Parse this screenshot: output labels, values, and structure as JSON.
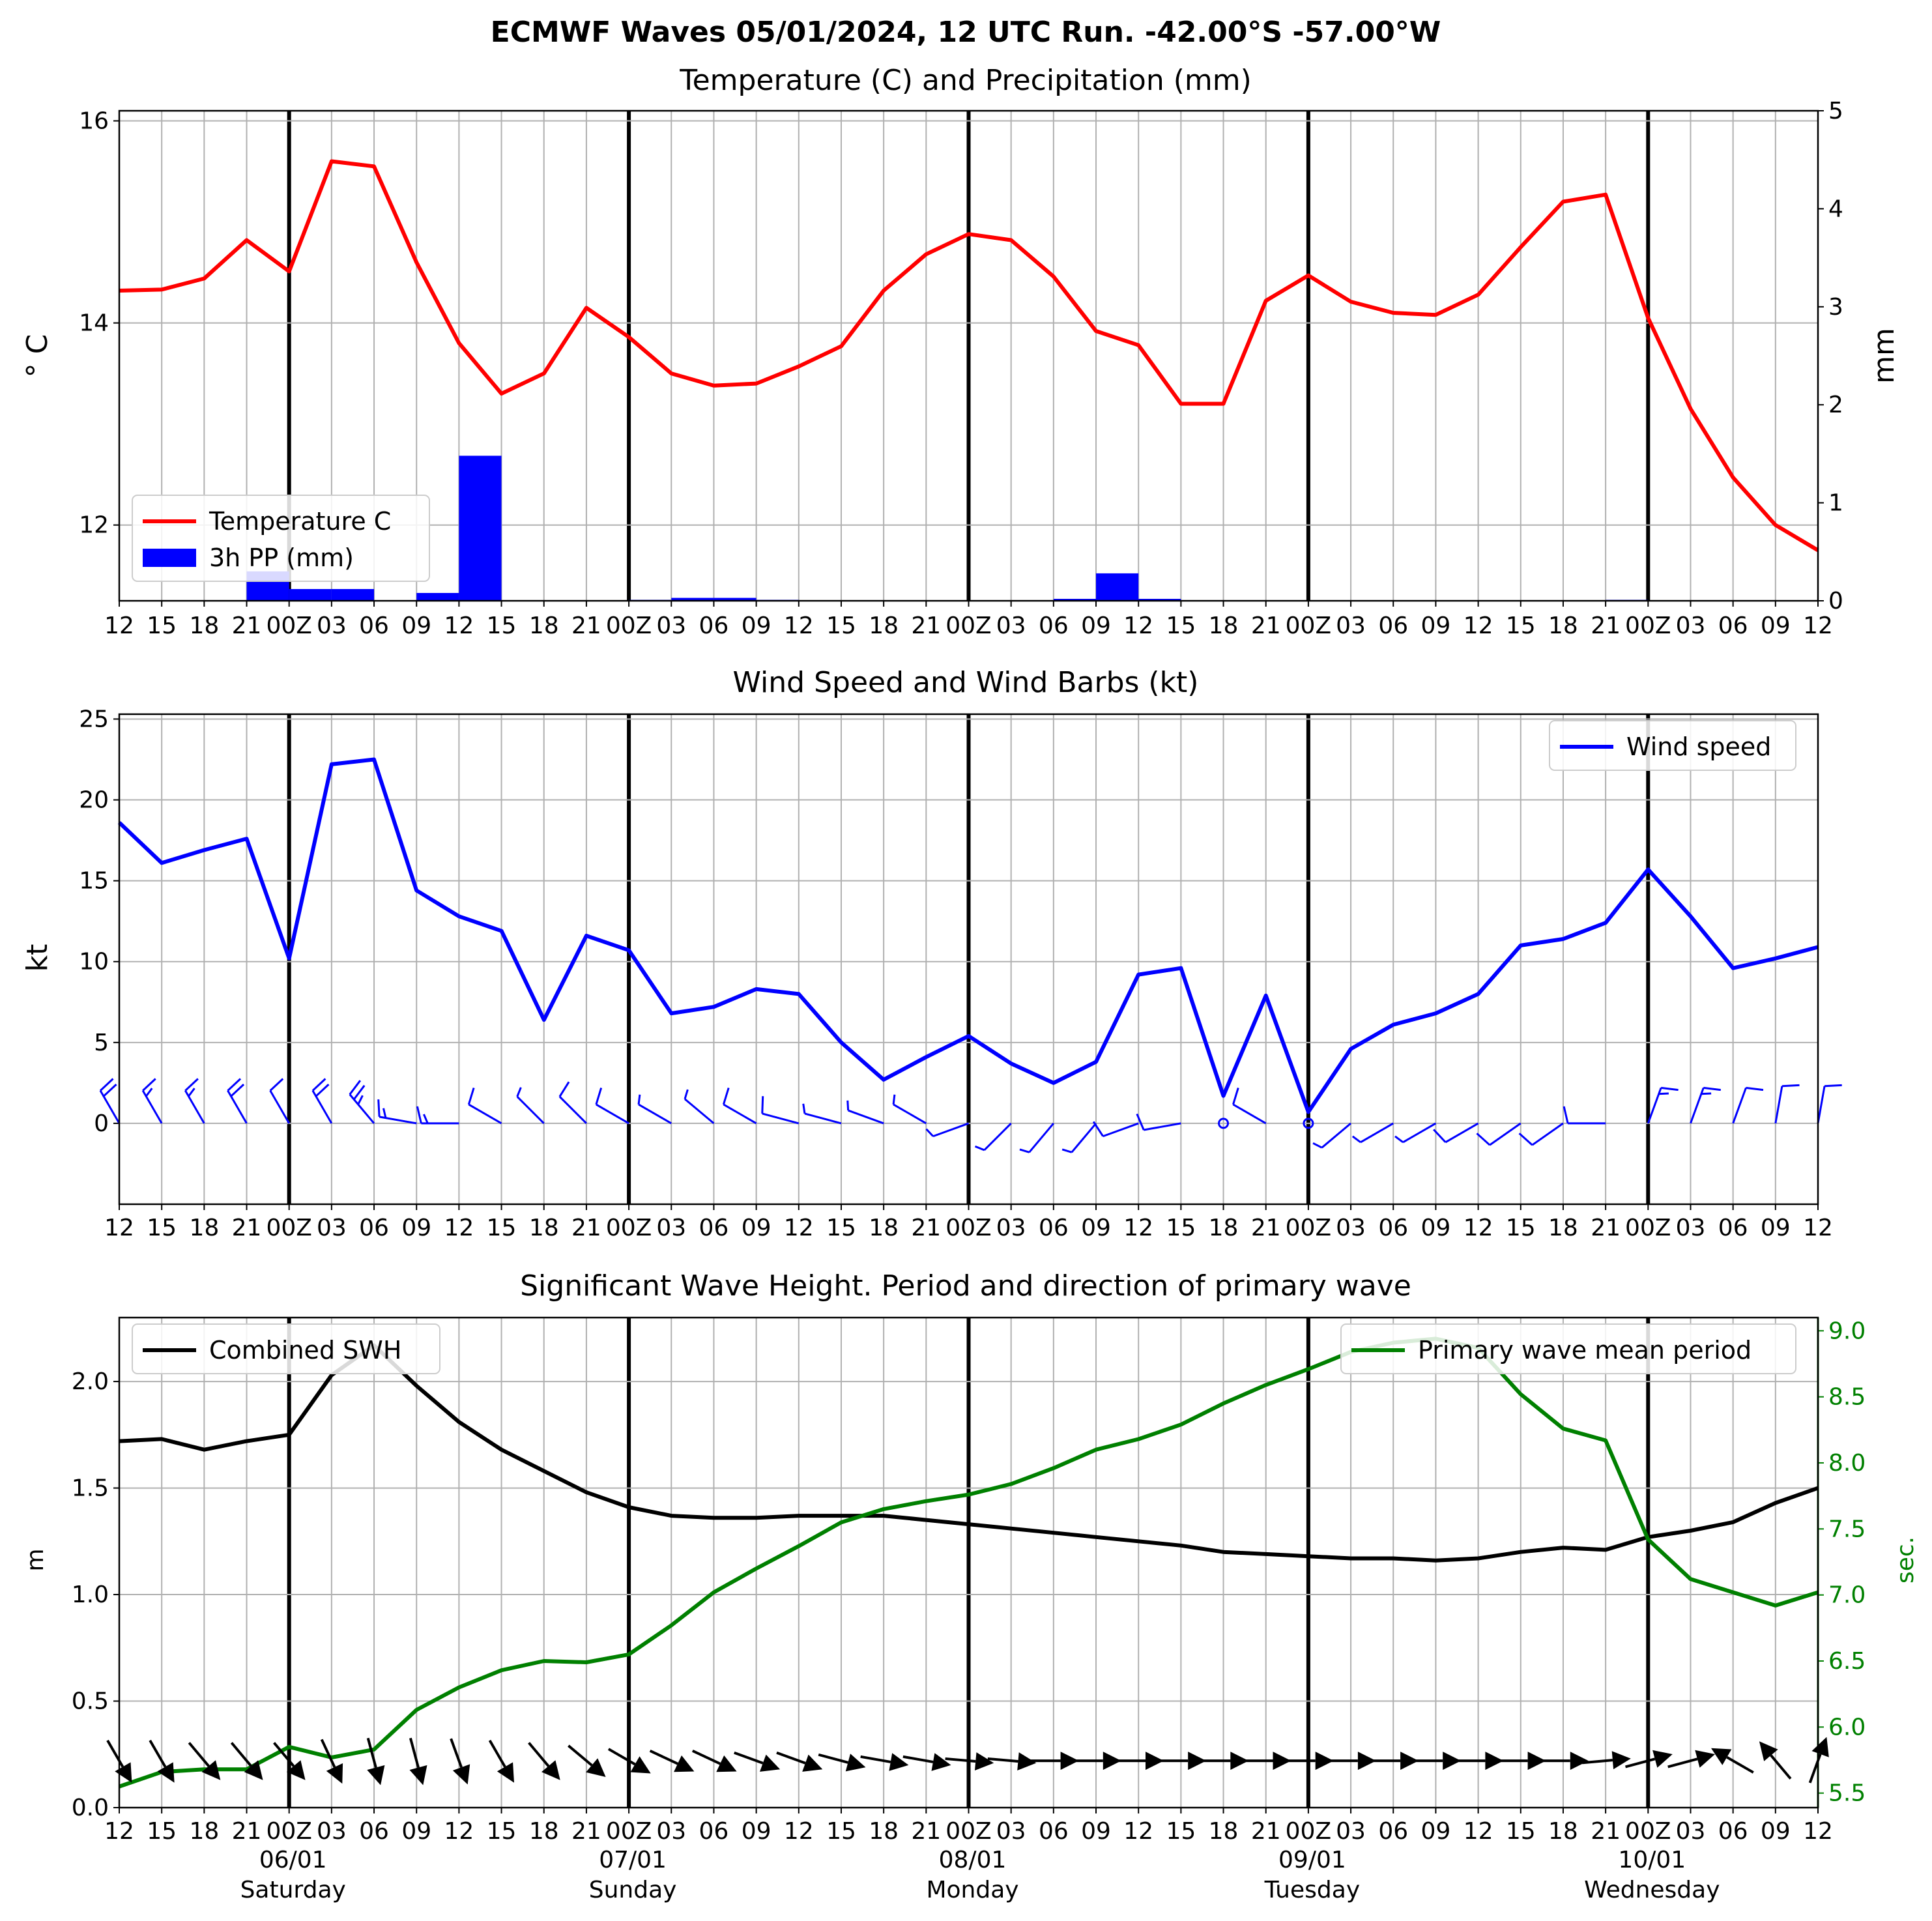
{
  "figure": {
    "title": "ECMWF Waves 05/01/2024, 12 UTC Run. -42.00°S -57.00°W"
  },
  "x_tick_labels": [
    "12",
    "15",
    "18",
    "21",
    "00Z",
    "03",
    "06",
    "09",
    "12",
    "15",
    "18",
    "21",
    "00Z",
    "03",
    "06",
    "09",
    "12",
    "15",
    "18",
    "21",
    "00Z",
    "03",
    "06",
    "09",
    "12",
    "15",
    "18",
    "21",
    "00Z",
    "03",
    "06",
    "09",
    "12",
    "15",
    "18",
    "21",
    "00Z",
    "03",
    "06",
    "09",
    "12"
  ],
  "day_labels": [
    {
      "date": "06/01",
      "day": "Saturday"
    },
    {
      "date": "07/01",
      "day": "Sunday"
    },
    {
      "date": "08/01",
      "day": "Monday"
    },
    {
      "date": "09/01",
      "day": "Tuesday"
    },
    {
      "date": "10/01",
      "day": "Wednesday"
    }
  ],
  "colors": {
    "temperature": "#ff0000",
    "precip": "#0000ff",
    "wind": "#0000ff",
    "swh": "#000000",
    "period": "#008000",
    "grid": "#b0b0b0"
  },
  "chart_data": [
    {
      "type": "line",
      "title": "Temperature (C) and Precipitation (mm)",
      "ylabel": "$^\\circ$C",
      "ylabel_display": "° C",
      "ylabel_right": "mm",
      "ylim": [
        11.25,
        16.1
      ],
      "ylim_right": [
        0,
        5
      ],
      "yticks": [
        12,
        14,
        16
      ],
      "yticks_right": [
        0,
        1,
        2,
        3,
        4,
        5
      ],
      "legend_placement": "lower-left",
      "grid": true,
      "series": [
        {
          "name": "Temperature C",
          "kind": "line",
          "axis": "left",
          "values": [
            14.32,
            14.33,
            14.44,
            14.82,
            14.51,
            15.6,
            15.55,
            14.6,
            13.8,
            13.3,
            13.5,
            14.15,
            13.86,
            13.5,
            13.38,
            13.4,
            13.57,
            13.77,
            14.32,
            14.68,
            14.88,
            14.82,
            14.46,
            13.92,
            13.78,
            13.2,
            13.2,
            14.22,
            14.47,
            14.21,
            14.1,
            14.08,
            14.28,
            14.75,
            15.2,
            15.27,
            14.05,
            13.15,
            12.47,
            12.0,
            11.75
          ]
        },
        {
          "name": "3h PP (mm)",
          "kind": "bar",
          "axis": "right",
          "values": [
            0,
            0,
            0,
            0.3,
            0.12,
            0.12,
            0,
            0.08,
            1.48,
            0,
            0,
            0,
            0.01,
            0.03,
            0.03,
            0.01,
            0,
            0,
            0,
            0,
            0,
            0,
            0.02,
            0.28,
            0.02,
            0,
            0,
            0,
            0,
            0,
            0,
            0,
            0,
            0,
            0,
            0.01,
            0,
            0,
            0,
            0
          ]
        }
      ]
    },
    {
      "type": "line",
      "title": "Wind Speed and Wind Barbs (kt)",
      "ylabel": "kt",
      "ylim": [
        -5,
        25.3
      ],
      "yticks": [
        0,
        5,
        10,
        15,
        20,
        25
      ],
      "legend_placement": "top-right",
      "grid": true,
      "series": [
        {
          "name": "Wind speed",
          "kind": "line",
          "values": [
            18.6,
            16.1,
            16.9,
            17.6,
            10.2,
            22.2,
            22.5,
            14.4,
            12.8,
            11.9,
            6.4,
            11.6,
            10.7,
            6.8,
            7.2,
            8.3,
            8.0,
            5.0,
            2.7,
            4.1,
            5.4,
            3.7,
            2.5,
            3.8,
            9.2,
            9.6,
            1.7,
            7.9,
            0.7,
            4.6,
            6.1,
            6.8,
            8.0,
            11.0,
            11.4,
            12.4,
            15.7,
            12.8,
            9.6,
            10.2,
            10.9
          ]
        }
      ],
      "barb_directions_deg": [
        330,
        330,
        330,
        330,
        330,
        330,
        320,
        280,
        270,
        300,
        315,
        315,
        300,
        300,
        310,
        300,
        285,
        285,
        290,
        300,
        250,
        225,
        220,
        220,
        250,
        260,
        null,
        300,
        null,
        230,
        240,
        240,
        240,
        235,
        235,
        270,
        20,
        20,
        20,
        10,
        10
      ]
    },
    {
      "type": "line",
      "title": "Significant Wave Height. Period and direction of primary wave",
      "ylabel": "m",
      "ylabel_right": "sec.",
      "ylim": [
        0.0,
        2.3
      ],
      "ylim_right": [
        5.39,
        9.1
      ],
      "yticks": [
        0.0,
        0.5,
        1.0,
        1.5,
        2.0
      ],
      "yticks_right": [
        5.5,
        6.0,
        6.5,
        7.0,
        7.5,
        8.0,
        8.5,
        9.0
      ],
      "legend_placement": "top",
      "grid": true,
      "series": [
        {
          "name": "Combined SWH",
          "kind": "line",
          "axis": "left",
          "values": [
            1.72,
            1.73,
            1.68,
            1.72,
            1.75,
            2.03,
            2.17,
            1.98,
            1.81,
            1.68,
            1.58,
            1.48,
            1.41,
            1.37,
            1.36,
            1.36,
            1.37,
            1.37,
            1.37,
            1.35,
            1.33,
            1.31,
            1.29,
            1.27,
            1.25,
            1.23,
            1.2,
            1.19,
            1.18,
            1.17,
            1.17,
            1.16,
            1.17,
            1.2,
            1.22,
            1.21,
            1.27,
            1.3,
            1.34,
            1.43,
            1.5
          ]
        },
        {
          "name": "Primary wave mean period",
          "kind": "line",
          "axis": "right",
          "values": [
            5.55,
            5.66,
            5.68,
            5.68,
            5.85,
            5.77,
            5.83,
            6.13,
            6.3,
            6.43,
            6.5,
            6.49,
            6.55,
            6.77,
            7.02,
            7.2,
            7.37,
            7.55,
            7.65,
            7.71,
            7.76,
            7.84,
            7.96,
            8.1,
            8.18,
            8.29,
            8.45,
            8.59,
            8.71,
            8.84,
            8.91,
            8.94,
            8.87,
            8.52,
            8.26,
            8.17,
            7.42,
            7.12,
            7.02,
            6.92,
            7.02
          ]
        }
      ],
      "wave_direction_deg": [
        330,
        330,
        320,
        320,
        320,
        335,
        345,
        345,
        340,
        330,
        320,
        310,
        300,
        295,
        295,
        290,
        290,
        285,
        280,
        280,
        275,
        275,
        270,
        270,
        270,
        270,
        270,
        270,
        270,
        270,
        270,
        270,
        270,
        270,
        270,
        265,
        255,
        255,
        120,
        140,
        200
      ]
    }
  ]
}
